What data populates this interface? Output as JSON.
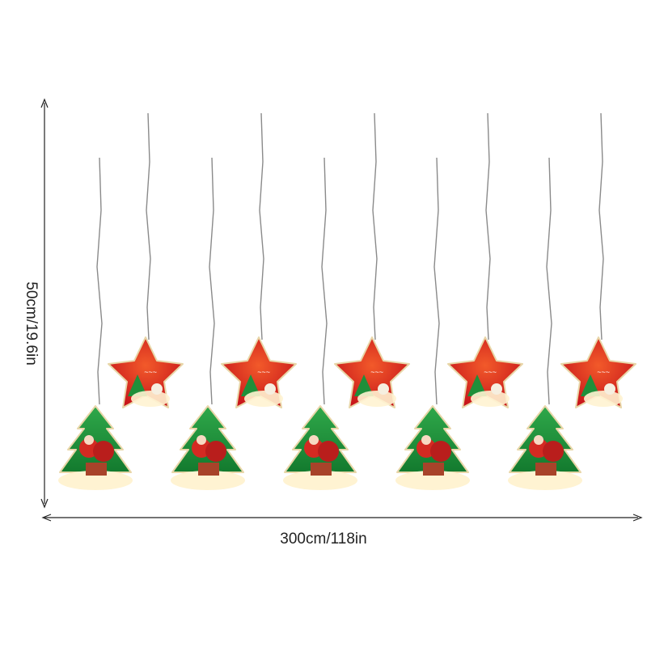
{
  "dimensions": {
    "height": "50cm/19.6in",
    "width": "300cm/118in"
  }
}
